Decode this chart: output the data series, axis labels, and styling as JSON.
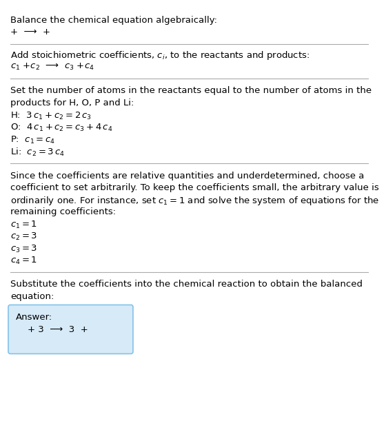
{
  "title": "Balance the chemical equation algebraically:",
  "line1": "+  ⟶  +",
  "section1_header": "Add stoichiometric coefficients, $c_i$, to the reactants and products:",
  "section1_eq": "$c_1$ +$c_2$  ⟶  $c_3$ +$c_4$",
  "section2_header_lines": [
    "Set the number of atoms in the reactants equal to the number of atoms in the",
    "products for H, O, P and Li:"
  ],
  "section2_lines": [
    "H:  $3\\,c_1 + c_2 = 2\\,c_3$",
    "O:  $4\\,c_1 + c_2 = c_3 + 4\\,c_4$",
    "P:  $c_1 = c_4$",
    "Li:  $c_2 = 3\\,c_4$"
  ],
  "section3_header_lines": [
    "Since the coefficients are relative quantities and underdetermined, choose a",
    "coefficient to set arbitrarily. To keep the coefficients small, the arbitrary value is",
    "ordinarily one. For instance, set $c_1 = 1$ and solve the system of equations for the",
    "remaining coefficients:"
  ],
  "section3_lines": [
    "$c_1 = 1$",
    "$c_2 = 3$",
    "$c_3 = 3$",
    "$c_4 = 1$"
  ],
  "section4_header_lines": [
    "Substitute the coefficients into the chemical reaction to obtain the balanced",
    "equation:"
  ],
  "answer_label": "Answer:",
  "answer_eq": "    + 3  ⟶  3  +",
  "bg_color": "#ffffff",
  "answer_box_color": "#d6eaf8",
  "answer_box_border": "#85c1e9",
  "text_color": "#000000",
  "separator_color": "#aaaaaa",
  "font_size": 9.5
}
